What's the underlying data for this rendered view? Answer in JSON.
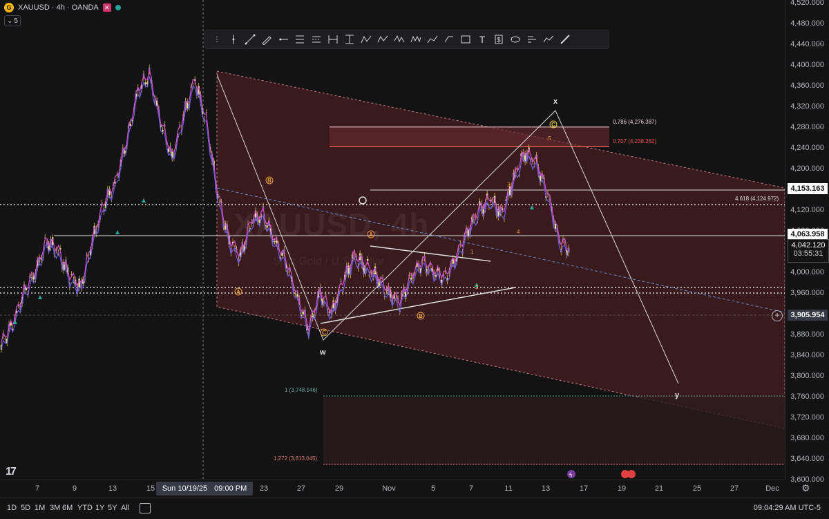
{
  "header": {
    "symbol_icon": "gold-coin-icon",
    "title": "XAUUSD · 4h · OANDA",
    "interval_badge": "5"
  },
  "watermark": {
    "symbol": "XAUUSD, 4h",
    "sub": "Spot Gold / U.S. Dollar"
  },
  "toolbar": {
    "tools": [
      "pointer-line",
      "trend-line",
      "brush",
      "horizontal-ray",
      "fib-retracement",
      "parallel-channel",
      "date-range",
      "price-range",
      "abc-pattern",
      "abcd-pattern",
      "wxy-pattern",
      "wxyxz-pattern",
      "path-tool",
      "polyline-tool",
      "rectangle-tool",
      "text-tool",
      "long-position",
      "ellipse-tool",
      "volume-profile",
      "forecast-tool",
      "brush-alt"
    ],
    "tool_labels": [
      "",
      "",
      "",
      "",
      "",
      "",
      "",
      "",
      "ABC",
      "ABCD",
      "W X Y",
      "W X Y X Z",
      "",
      "",
      "",
      "T",
      "$",
      "",
      "",
      "",
      ""
    ]
  },
  "price_axis": {
    "ticks": [
      "4,520.000",
      "4,480.000",
      "4,440.000",
      "4,400.000",
      "4,360.000",
      "4,320.000",
      "4,280.000",
      "4,240.000",
      "4,200.000",
      "4,160.000",
      "4,120.000",
      "4,080.000",
      "4,040.000",
      "4,000.000",
      "3,960.000",
      "3,920.000",
      "3,880.000",
      "3,840.000",
      "3,800.000",
      "3,760.000",
      "3,720.000",
      "3,680.000",
      "3,640.000",
      "3,600.000"
    ],
    "labels": {
      "level_a": "4,153.163",
      "level_b": "4,063.958",
      "current_price": "4,042.120",
      "countdown": "03:55:31",
      "crosshair": "3,905.954"
    },
    "colors": {
      "current": "#ef5350",
      "level": "#ffffff",
      "crosshair": "#363a45"
    }
  },
  "time_axis": {
    "ticks": [
      "7",
      "9",
      "13",
      "15",
      "23",
      "27",
      "29",
      "Nov",
      "5",
      "7",
      "11",
      "13",
      "17",
      "19",
      "21",
      "25",
      "27",
      "Dec"
    ],
    "highlight_date": "Sun 10/19/25",
    "highlight_time": "09:00 PM"
  },
  "fib_labels": {
    "f786": "0.786 (4,276.387)",
    "f707": "0.707 (4,238.262)",
    "f4618": "4.618 (4,124.972)",
    "f1": "1 (3,748.546)",
    "f1272": "1.272 (3,613.045)"
  },
  "wave_labels": {
    "w": "w",
    "x": "x",
    "y": "y",
    "A1": "A",
    "B1": "B",
    "C1": "C",
    "A2": "A",
    "B2": "B",
    "C2": "C",
    "n1": "1",
    "n2": "2",
    "n3": "3",
    "n4": "4",
    "n5": "5"
  },
  "bottom_bar": {
    "ranges": [
      "1D",
      "5D",
      "1M",
      "3M",
      "6M",
      "YTD",
      "1Y",
      "5Y",
      "All"
    ],
    "clock": "09:04:29 AM UTC-5"
  },
  "chart_data": {
    "type": "candlestick",
    "symbol": "XAUUSD",
    "interval": "4h",
    "ylim": [
      3590,
      4530
    ],
    "series": [
      {
        "name": "price",
        "values": [
          3860,
          3900,
          3960,
          4000,
          4060,
          4040,
          3990,
          3970,
          4060,
          4130,
          4170,
          4250,
          4350,
          4380,
          4290,
          4220,
          4300,
          4370,
          4290,
          4150,
          4060,
          4030,
          4100,
          4110,
          4060,
          4020,
          3950,
          3890,
          3960,
          3920,
          3980,
          4030,
          4010,
          3990,
          3960,
          3940,
          3990,
          4020,
          4000,
          3990,
          4030,
          4080,
          4120,
          4140,
          4110,
          4180,
          4230,
          4210,
          4150,
          4060,
          4042
        ]
      }
    ],
    "current_price": 4042.12
  }
}
